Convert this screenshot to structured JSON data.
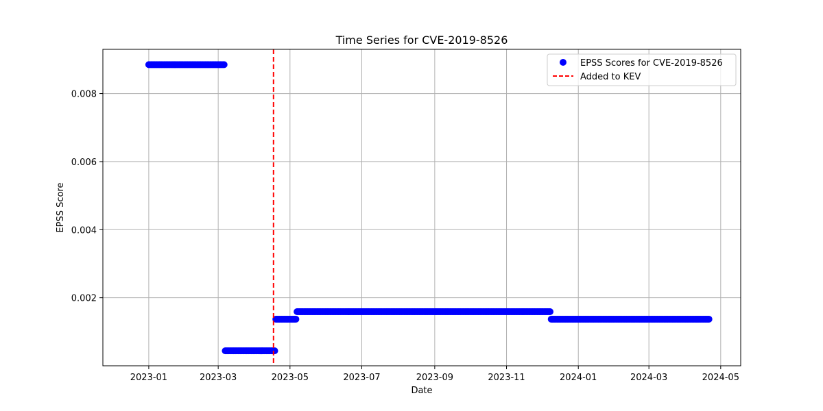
{
  "chart_data": {
    "type": "scatter",
    "title": "Time Series for CVE-2019-8526",
    "xlabel": "Date",
    "ylabel": "EPSS Score",
    "x_range": [
      "2022-11-23",
      "2024-05-18"
    ],
    "ylim": [
      0.0,
      0.0093
    ],
    "x_ticks": [
      "2023-01",
      "2023-03",
      "2023-05",
      "2023-07",
      "2023-09",
      "2023-11",
      "2024-01",
      "2024-03",
      "2024-05"
    ],
    "y_ticks": [
      0.002,
      0.004,
      0.006,
      0.008
    ],
    "y_tick_labels": [
      "0.002",
      "0.004",
      "0.006",
      "0.008"
    ],
    "grid": true,
    "legend_position": "top-right",
    "series": [
      {
        "name": "EPSS Scores for CVE-2019-8526",
        "color": "#0000ff",
        "marker": "circle",
        "segments": [
          {
            "start": "2023-01-01",
            "end": "2023-03-06",
            "value": 0.00885
          },
          {
            "start": "2023-03-07",
            "end": "2023-04-18",
            "value": 0.00044
          },
          {
            "start": "2023-04-19",
            "end": "2023-05-06",
            "value": 0.00137
          },
          {
            "start": "2023-05-07",
            "end": "2023-12-08",
            "value": 0.00159
          },
          {
            "start": "2023-12-09",
            "end": "2024-04-21",
            "value": 0.00137
          }
        ]
      }
    ],
    "vertical_lines": [
      {
        "name": "Added to KEV",
        "date": "2023-04-17",
        "color": "#ff0000",
        "style": "dashed"
      }
    ]
  }
}
